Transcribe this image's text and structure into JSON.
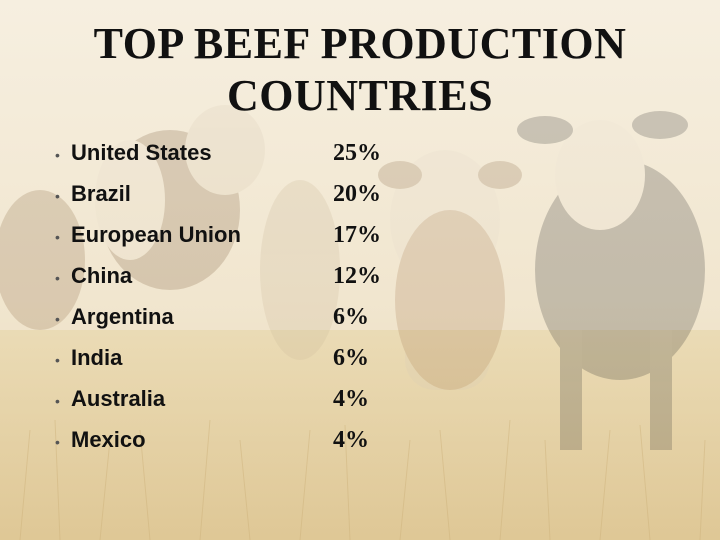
{
  "slide": {
    "title_lines": [
      "TOP BEEF PRODUCTION",
      "COUNTRIES"
    ],
    "items": [
      {
        "country": "United States",
        "percent": "25%"
      },
      {
        "country": "Brazil",
        "percent": "20%"
      },
      {
        "country": "European Union",
        "percent": "17%"
      },
      {
        "country": "China",
        "percent": "12%"
      },
      {
        "country": "Argentina",
        "percent": "6%"
      },
      {
        "country": "India",
        "percent": "6%"
      },
      {
        "country": "Australia",
        "percent": "4%"
      },
      {
        "country": "Mexico",
        "percent": "4%"
      }
    ],
    "bullet_glyph": "•"
  }
}
